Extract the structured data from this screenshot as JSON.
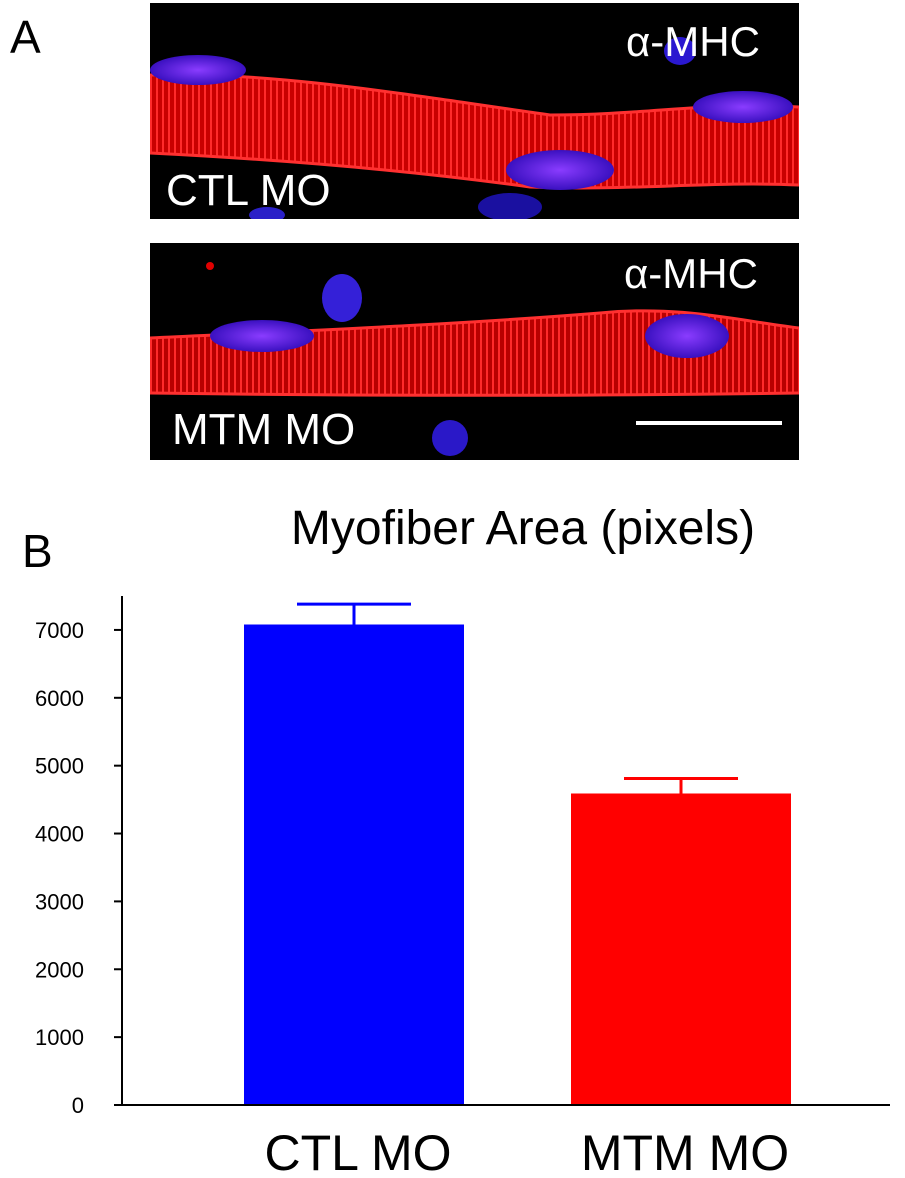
{
  "panel_a": {
    "letter": "A",
    "images": [
      {
        "condition_label": "CTL MO",
        "stain_label": "α-MHC"
      },
      {
        "condition_label": "MTM MO",
        "stain_label": "α-MHC"
      }
    ]
  },
  "panel_b": {
    "letter": "B"
  },
  "chart_data": {
    "type": "bar",
    "title": "Myofiber Area (pixels)",
    "xlabel": "",
    "ylabel": "",
    "categories": [
      "CTL MO",
      "MTM MO"
    ],
    "values": [
      7080,
      4590
    ],
    "errors": [
      300,
      220
    ],
    "colors": [
      "#0000ff",
      "#ff0000"
    ],
    "ylim": [
      0,
      7500
    ],
    "yticks": [
      0,
      1000,
      2000,
      3000,
      4000,
      5000,
      6000,
      7000
    ],
    "grid": false
  }
}
